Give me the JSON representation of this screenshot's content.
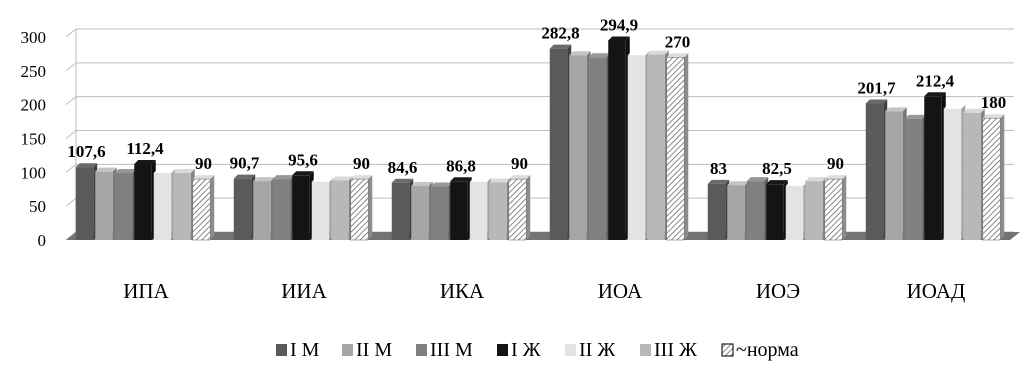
{
  "chart_data": {
    "type": "bar",
    "categories": [
      "ИПА",
      "ИИА",
      "ИКА",
      "ИОА",
      "ИОЭ",
      "ИОАД"
    ],
    "yticks": [
      "0",
      "50",
      "100",
      "150",
      "200",
      "250",
      "300"
    ],
    "ylim": [
      0,
      300
    ],
    "grid": true,
    "legend_position": "bottom",
    "colors": {
      "s1": "#5a5a5a",
      "s2": "#a6a6a6",
      "s3": "#808080",
      "s4": "#141414",
      "s5": "#e3e3e3",
      "s6": "#b8b8b8",
      "s7": "#ffffff",
      "grid": "#bdbdbd",
      "floor": "#737373"
    },
    "series": [
      {
        "name": "I М",
        "values": [
          107.6,
          90.7,
          84.6,
          282.8,
          83,
          201.7
        ],
        "labels": [
          "107,6",
          "90,7",
          "84,6",
          "282,8",
          "83",
          "201,7"
        ]
      },
      {
        "name": "II М",
        "values": [
          101,
          87,
          80,
          273,
          81,
          190
        ]
      },
      {
        "name": "III М",
        "values": [
          99,
          90,
          79,
          270,
          87,
          179
        ]
      },
      {
        "name": "I Ж",
        "values": [
          112.4,
          95.6,
          86.8,
          294.9,
          82.5,
          212.4
        ],
        "labels": [
          "112,4",
          "95,6",
          "86,8",
          "294,9",
          "82,5",
          "212,4"
        ]
      },
      {
        "name": "II Ж",
        "values": [
          99,
          86,
          86,
          273,
          80,
          194
        ]
      },
      {
        "name": "III Ж",
        "values": [
          99,
          88,
          85,
          274,
          87,
          188
        ]
      },
      {
        "name": "~норма",
        "values": [
          90,
          90,
          90,
          270,
          90,
          180
        ],
        "labels": [
          "90",
          "90",
          "90",
          "270",
          "90",
          "180"
        ],
        "hatched": true
      }
    ]
  }
}
